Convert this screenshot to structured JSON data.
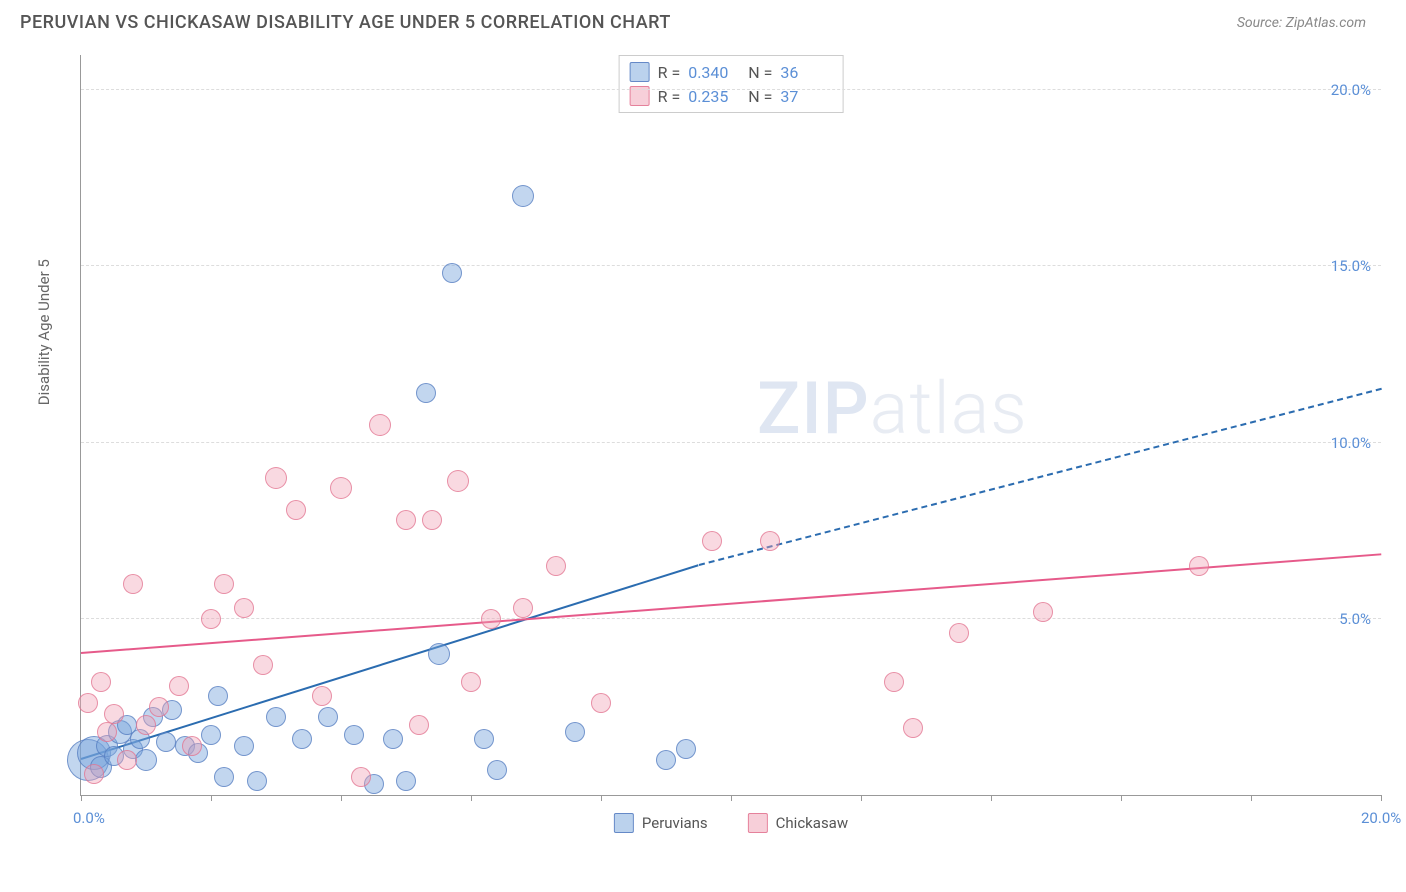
{
  "header": {
    "title": "PERUVIAN VS CHICKASAW DISABILITY AGE UNDER 5 CORRELATION CHART",
    "source": "Source: ZipAtlas.com"
  },
  "watermark": {
    "part1": "ZIP",
    "part2": "atlas"
  },
  "chart": {
    "type": "scatter",
    "y_axis_label": "Disability Age Under 5",
    "xlim": [
      0,
      20
    ],
    "ylim": [
      0,
      21
    ],
    "x_ticks": [
      0,
      2,
      4,
      6,
      8,
      10,
      12,
      14,
      16,
      18,
      20
    ],
    "x_tick_labels": {
      "0": "0.0%",
      "20": "20.0%"
    },
    "y_grid": [
      5,
      10,
      15,
      20
    ],
    "y_tick_labels": {
      "5": "5.0%",
      "10": "10.0%",
      "15": "15.0%",
      "20": "20.0%"
    },
    "background": "#ffffff",
    "grid_color": "#dddddd",
    "axis_color": "#999999",
    "tick_label_color": "#5b8fd6",
    "series": [
      {
        "name": "Peruvians",
        "color_fill": "rgba(120,165,220,0.45)",
        "color_stroke": "rgba(80,120,190,0.7)",
        "marker_class": "marker-blue",
        "R": "0.340",
        "N": "36",
        "trend": {
          "x1": 0,
          "y1": 1.0,
          "x2": 9.5,
          "y2": 6.5,
          "color": "#2b6cb0",
          "dashed_extend": {
            "x2": 20,
            "y2": 11.5
          }
        },
        "points": [
          {
            "x": 0.1,
            "y": 1.0,
            "r": 20
          },
          {
            "x": 0.2,
            "y": 1.2,
            "r": 16
          },
          {
            "x": 0.3,
            "y": 0.8,
            "r": 10
          },
          {
            "x": 0.4,
            "y": 1.4,
            "r": 10
          },
          {
            "x": 0.5,
            "y": 1.1,
            "r": 9
          },
          {
            "x": 0.6,
            "y": 1.8,
            "r": 11
          },
          {
            "x": 0.7,
            "y": 2.0,
            "r": 9
          },
          {
            "x": 0.8,
            "y": 1.3,
            "r": 9
          },
          {
            "x": 0.9,
            "y": 1.6,
            "r": 9
          },
          {
            "x": 1.0,
            "y": 1.0,
            "r": 10
          },
          {
            "x": 1.1,
            "y": 2.2,
            "r": 9
          },
          {
            "x": 1.3,
            "y": 1.5,
            "r": 9
          },
          {
            "x": 1.4,
            "y": 2.4,
            "r": 9
          },
          {
            "x": 1.6,
            "y": 1.4,
            "r": 9
          },
          {
            "x": 1.8,
            "y": 1.2,
            "r": 9
          },
          {
            "x": 2.0,
            "y": 1.7,
            "r": 9
          },
          {
            "x": 2.1,
            "y": 2.8,
            "r": 9
          },
          {
            "x": 2.2,
            "y": 0.5,
            "r": 9
          },
          {
            "x": 2.5,
            "y": 1.4,
            "r": 9
          },
          {
            "x": 2.7,
            "y": 0.4,
            "r": 9
          },
          {
            "x": 3.0,
            "y": 2.2,
            "r": 9
          },
          {
            "x": 3.4,
            "y": 1.6,
            "r": 9
          },
          {
            "x": 3.8,
            "y": 2.2,
            "r": 9
          },
          {
            "x": 4.2,
            "y": 1.7,
            "r": 9
          },
          {
            "x": 4.5,
            "y": 0.3,
            "r": 9
          },
          {
            "x": 4.8,
            "y": 1.6,
            "r": 9
          },
          {
            "x": 5.0,
            "y": 0.4,
            "r": 9
          },
          {
            "x": 5.3,
            "y": 11.4,
            "r": 9
          },
          {
            "x": 5.5,
            "y": 4.0,
            "r": 10
          },
          {
            "x": 5.7,
            "y": 14.8,
            "r": 9
          },
          {
            "x": 6.2,
            "y": 1.6,
            "r": 9
          },
          {
            "x": 6.4,
            "y": 0.7,
            "r": 9
          },
          {
            "x": 6.8,
            "y": 17.0,
            "r": 10
          },
          {
            "x": 7.6,
            "y": 1.8,
            "r": 9
          },
          {
            "x": 9.0,
            "y": 1.0,
            "r": 9
          },
          {
            "x": 9.3,
            "y": 1.3,
            "r": 9
          }
        ]
      },
      {
        "name": "Chickasaw",
        "color_fill": "rgba(240,160,180,0.4)",
        "color_stroke": "rgba(225,110,140,0.7)",
        "marker_class": "marker-pink",
        "R": "0.235",
        "N": "37",
        "trend": {
          "x1": 0,
          "y1": 4.0,
          "x2": 20,
          "y2": 6.8,
          "color": "#e65a8a"
        },
        "points": [
          {
            "x": 0.1,
            "y": 2.6,
            "r": 9
          },
          {
            "x": 0.2,
            "y": 0.6,
            "r": 9
          },
          {
            "x": 0.3,
            "y": 3.2,
            "r": 9
          },
          {
            "x": 0.4,
            "y": 1.8,
            "r": 9
          },
          {
            "x": 0.5,
            "y": 2.3,
            "r": 9
          },
          {
            "x": 0.7,
            "y": 1.0,
            "r": 9
          },
          {
            "x": 0.8,
            "y": 6.0,
            "r": 9
          },
          {
            "x": 1.0,
            "y": 2.0,
            "r": 9
          },
          {
            "x": 1.2,
            "y": 2.5,
            "r": 9
          },
          {
            "x": 1.5,
            "y": 3.1,
            "r": 9
          },
          {
            "x": 1.7,
            "y": 1.4,
            "r": 9
          },
          {
            "x": 2.0,
            "y": 5.0,
            "r": 9
          },
          {
            "x": 2.2,
            "y": 6.0,
            "r": 9
          },
          {
            "x": 2.5,
            "y": 5.3,
            "r": 9
          },
          {
            "x": 2.8,
            "y": 3.7,
            "r": 9
          },
          {
            "x": 3.0,
            "y": 9.0,
            "r": 10
          },
          {
            "x": 3.3,
            "y": 8.1,
            "r": 9
          },
          {
            "x": 3.7,
            "y": 2.8,
            "r": 9
          },
          {
            "x": 4.0,
            "y": 8.7,
            "r": 10
          },
          {
            "x": 4.3,
            "y": 0.5,
            "r": 9
          },
          {
            "x": 4.6,
            "y": 10.5,
            "r": 10
          },
          {
            "x": 5.0,
            "y": 7.8,
            "r": 9
          },
          {
            "x": 5.4,
            "y": 7.8,
            "r": 9
          },
          {
            "x": 5.8,
            "y": 8.9,
            "r": 10
          },
          {
            "x": 6.0,
            "y": 3.2,
            "r": 9
          },
          {
            "x": 6.3,
            "y": 5.0,
            "r": 9
          },
          {
            "x": 6.8,
            "y": 5.3,
            "r": 9
          },
          {
            "x": 7.3,
            "y": 6.5,
            "r": 9
          },
          {
            "x": 8.0,
            "y": 2.6,
            "r": 9
          },
          {
            "x": 9.7,
            "y": 7.2,
            "r": 9
          },
          {
            "x": 10.6,
            "y": 7.2,
            "r": 9
          },
          {
            "x": 12.5,
            "y": 3.2,
            "r": 9
          },
          {
            "x": 12.8,
            "y": 1.9,
            "r": 9
          },
          {
            "x": 13.5,
            "y": 4.6,
            "r": 9
          },
          {
            "x": 14.8,
            "y": 5.2,
            "r": 9
          },
          {
            "x": 17.2,
            "y": 6.5,
            "r": 9
          },
          {
            "x": 5.2,
            "y": 2.0,
            "r": 9
          }
        ]
      }
    ],
    "legend_bottom": [
      {
        "label": "Peruvians",
        "swatch": "swatch-blue"
      },
      {
        "label": "Chickasaw",
        "swatch": "swatch-pink"
      }
    ]
  }
}
